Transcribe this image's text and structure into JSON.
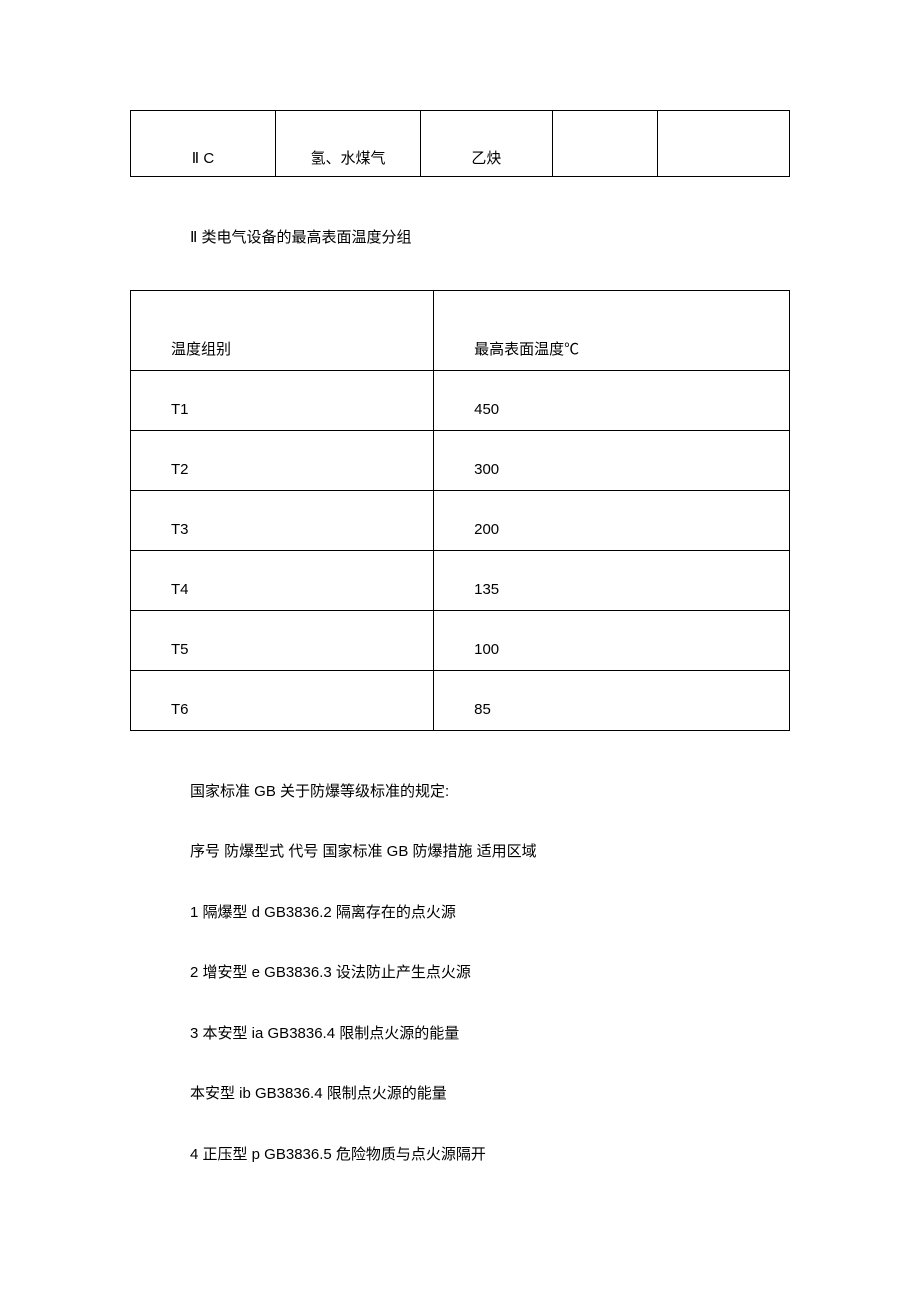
{
  "table1": {
    "row": {
      "c1": "Ⅱ C",
      "c2": "氢、水煤气",
      "c3": "乙炔",
      "c4": "",
      "c5": ""
    }
  },
  "heading1": "Ⅱ 类电气设备的最高表面温度分组",
  "table2": {
    "header": {
      "a": "温度组别",
      "b": "最高表面温度℃"
    },
    "rows": [
      {
        "a": "T1",
        "b": "450"
      },
      {
        "a": "T2",
        "b": "300"
      },
      {
        "a": "T3",
        "b": "200"
      },
      {
        "a": "T4",
        "b": "135"
      },
      {
        "a": "T5",
        "b": "100"
      },
      {
        "a": "T6",
        "b": "85"
      }
    ]
  },
  "paragraphs": [
    "国家标准 GB 关于防爆等级标准的规定:",
    "序号 防爆型式 代号 国家标准 GB 防爆措施 适用区域",
    "1 隔爆型 d GB3836.2 隔离存在的点火源",
    "2 增安型 e GB3836.3 设法防止产生点火源",
    "3 本安型 ia GB3836.4 限制点火源的能量",
    "本安型 ib GB3836.4 限制点火源的能量",
    "4 正压型 p GB3836.5 危险物质与点火源隔开"
  ]
}
